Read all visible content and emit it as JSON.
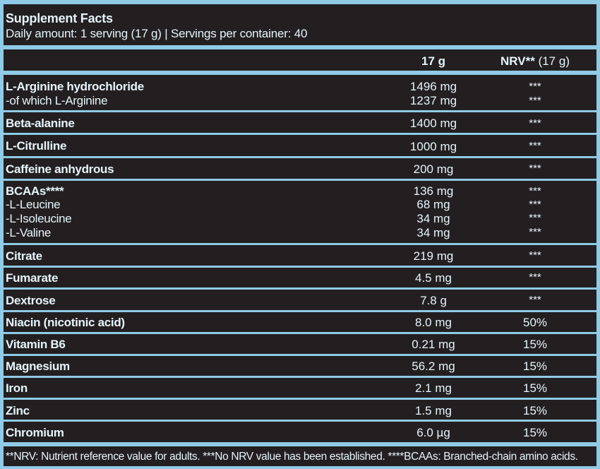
{
  "title": "Supplement Facts",
  "subtitle": "Daily amount: 1 serving (17 g) | Servings per container: 40",
  "header": {
    "amount": "17 g",
    "nrv_bold": "NRV**",
    "nrv_rest": " (17 g)"
  },
  "rows": [
    {
      "name": "L-Arginine hydrochloride",
      "amount": "1496 mg",
      "nrv": "***"
    },
    {
      "name": "-of which L-Arginine",
      "amount": "1237 mg",
      "nrv": "***"
    },
    {
      "name": "Beta-alanine",
      "amount": "1400 mg",
      "nrv": "***"
    },
    {
      "name": "L-Citrulline",
      "amount": "1000 mg",
      "nrv": "***"
    },
    {
      "name": "Caffeine anhydrous",
      "amount": "200 mg",
      "nrv": "***"
    },
    {
      "name": "BCAAs****",
      "amount": "136 mg",
      "nrv": "***"
    },
    {
      "name": "-L-Leucine",
      "amount": "68 mg",
      "nrv": "***"
    },
    {
      "name": "-L-Isoleucine",
      "amount": "34 mg",
      "nrv": "***"
    },
    {
      "name": "-L-Valine",
      "amount": "34 mg",
      "nrv": "***"
    },
    {
      "name": "Citrate",
      "amount": "219 mg",
      "nrv": "***"
    },
    {
      "name": "Fumarate",
      "amount": "4.5 mg",
      "nrv": "***"
    },
    {
      "name": "Dextrose",
      "amount": "7.8 g",
      "nrv": "***"
    },
    {
      "name": "Niacin (nicotinic acid)",
      "amount": "8.0 mg",
      "nrv": "50%"
    },
    {
      "name": "Vitamin B6",
      "amount": "0.21 mg",
      "nrv": "15%"
    },
    {
      "name": "Magnesium",
      "amount": "56.2 mg",
      "nrv": "15%"
    },
    {
      "name": "Iron",
      "amount": "2.1 mg",
      "nrv": "15%"
    },
    {
      "name": "Zinc",
      "amount": "1.5 mg",
      "nrv": "15%"
    },
    {
      "name": "Chromium",
      "amount": "6.0 µg",
      "nrv": "15%"
    }
  ],
  "footnote": "**NRV: Nutrient reference value for adults. ***No NRV value has been established. ****BCAAs: Branched-chain amino acids.",
  "colors": {
    "background": "#231f20",
    "rule": "#8fcbe6",
    "text": "#e6f4fb"
  }
}
